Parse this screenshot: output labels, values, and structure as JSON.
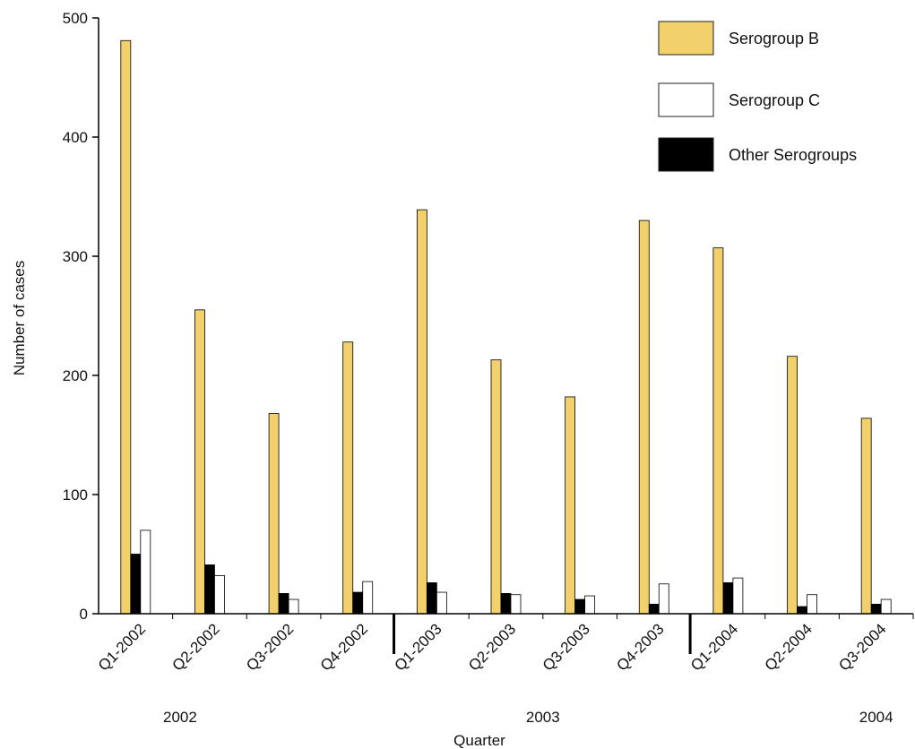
{
  "chart_data": {
    "type": "bar",
    "title": "",
    "xlabel": "Quarter",
    "ylabel": "Number of cases",
    "ylim": [
      0,
      500
    ],
    "yticks": [
      0,
      100,
      200,
      300,
      400,
      500
    ],
    "categories": [
      "Q1-2002",
      "Q2-2002",
      "Q3-2002",
      "Q4-2002",
      "Q1-2003",
      "Q2-2003",
      "Q3-2003",
      "Q4-2003",
      "Q1-2004",
      "Q2-2004",
      "Q3-2004"
    ],
    "series": [
      {
        "name": "Serogroup B",
        "color": "#f2d06b",
        "values": [
          481,
          255,
          168,
          228,
          339,
          213,
          182,
          330,
          307,
          216,
          164
        ]
      },
      {
        "name": "Other Serogroups",
        "color": "#000000",
        "values": [
          50,
          41,
          17,
          18,
          26,
          17,
          12,
          8,
          26,
          6,
          8
        ]
      },
      {
        "name": "Serogroup  C",
        "color": "#ffffff",
        "values": [
          70,
          32,
          12,
          27,
          18,
          16,
          15,
          25,
          30,
          16,
          12
        ]
      }
    ],
    "legend": {
      "position": "top-right",
      "items": [
        {
          "name": "Serogroup B",
          "color": "#f2d06b"
        },
        {
          "name": "Serogroup  C",
          "color": "#ffffff"
        },
        {
          "name": "Other Serogroups",
          "color": "#000000"
        }
      ]
    },
    "year_groups": [
      {
        "label": "2002",
        "start": 0,
        "end": 3
      },
      {
        "label": "2003",
        "start": 4,
        "end": 7
      },
      {
        "label": "2004",
        "start": 8,
        "end": 10
      }
    ],
    "grid": false
  }
}
